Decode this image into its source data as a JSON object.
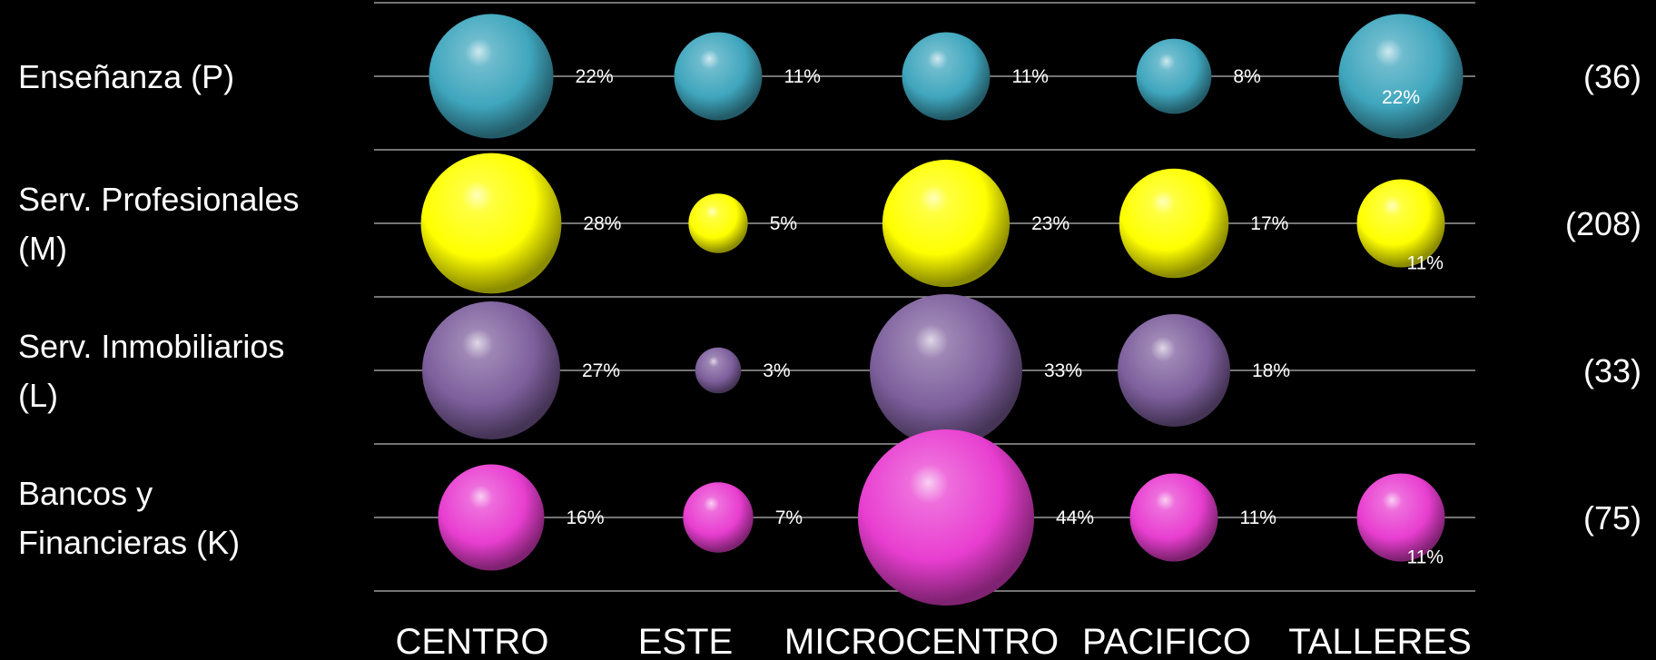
{
  "chart_data": {
    "type": "bubble",
    "columns": [
      "CENTRO",
      "ESTE",
      "MICROCENTRO",
      "PACIFICO",
      "TALLERES"
    ],
    "rows": [
      {
        "label_lines": [
          "Enseñanza (P)"
        ],
        "count": "(36)",
        "color": "#3fa6bd",
        "values": [
          22,
          11,
          11,
          8,
          22
        ],
        "value_labels": [
          "22%",
          "11%",
          "11%",
          "8%",
          "22%"
        ]
      },
      {
        "label_lines": [
          "Serv. Profesionales",
          "(M)"
        ],
        "count": "(208)",
        "color": "#ffff00",
        "values": [
          28,
          5,
          23,
          17,
          11
        ],
        "value_labels": [
          "28%",
          "5%",
          "23%",
          "17%",
          "11%"
        ]
      },
      {
        "label_lines": [
          "Serv. Inmobiliarios",
          "(L)"
        ],
        "count": "(33)",
        "color": "#7d5f9c",
        "values": [
          27,
          3,
          33,
          18,
          null
        ],
        "value_labels": [
          "27%",
          "3%",
          "33%",
          "18%",
          null
        ]
      },
      {
        "label_lines": [
          "Bancos y",
          "Financieras (K)"
        ],
        "count": "(75)",
        "color": "#e83ed0",
        "values": [
          16,
          7,
          44,
          11,
          11
        ],
        "value_labels": [
          "16%",
          "7%",
          "44%",
          "11%",
          "11%"
        ]
      }
    ],
    "grid": true,
    "legend": "none"
  }
}
